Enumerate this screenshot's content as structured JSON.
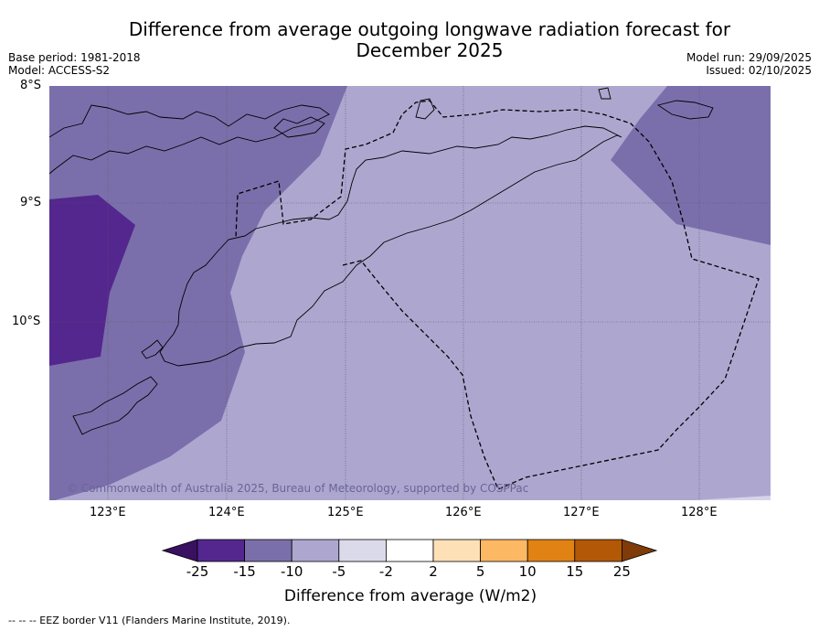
{
  "title": {
    "line1": "Difference from average outgoing longwave radiation forecast for",
    "line2": "December 2025"
  },
  "meta": {
    "base_period": "Base period: 1981-2018",
    "model": "Model: ACCESS-S2",
    "model_run": "Model run: 29/09/2025",
    "issued": "Issued: 02/10/2025"
  },
  "axes": {
    "lat_labels": [
      "8°S",
      "9°S",
      "10°S"
    ],
    "lon_labels": [
      "123°E",
      "124°E",
      "125°E",
      "126°E",
      "127°E",
      "128°E"
    ]
  },
  "copyright": "© Commonwealth of Australia 2025, Bureau of Meteorology, supported by COSPPac",
  "colorbar": {
    "ticks": [
      "-25",
      "-15",
      "-10",
      "-5",
      "-2",
      "2",
      "5",
      "10",
      "15",
      "25"
    ],
    "colors": [
      "#3a1060",
      "#54278f",
      "#7b6fab",
      "#ada7d0",
      "#dadaeb",
      "#ffffff",
      "#fee0b6",
      "#fdb863",
      "#e08214",
      "#b35806",
      "#7f3b08"
    ],
    "label": "Difference from average (W/m2)"
  },
  "legend_note": "--  --  -- EEZ border V11 (Flanders Marine Institute, 2019).",
  "map_colors": {
    "light": "#ada7d0",
    "medium": "#7b6fab",
    "dark": "#54278f"
  }
}
